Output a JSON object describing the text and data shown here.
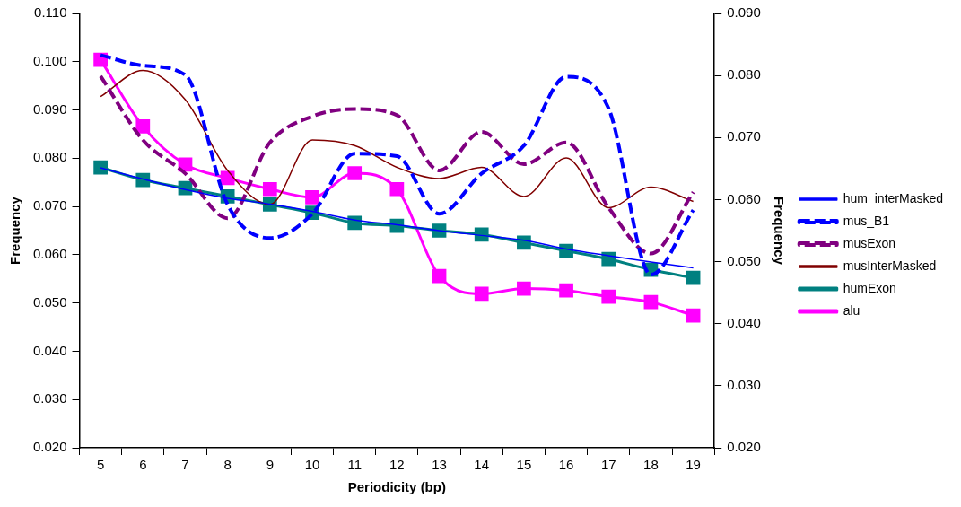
{
  "chart_data": {
    "type": "line",
    "xlabel": "Periodicity (bp)",
    "ylabel": "Frequency",
    "y2label": "Frequency",
    "categories": [
      "5",
      "6",
      "7",
      "8",
      "9",
      "10",
      "11",
      "12",
      "13",
      "14",
      "15",
      "16",
      "17",
      "18",
      "19"
    ],
    "ylim": [
      0.02,
      0.11
    ],
    "yticks": [
      {
        "value": 0.02,
        "label": "0.020"
      },
      {
        "value": 0.03,
        "label": "0.030"
      },
      {
        "value": 0.04,
        "label": "0.040"
      },
      {
        "value": 0.05,
        "label": "0.050"
      },
      {
        "value": 0.06,
        "label": "0.060"
      },
      {
        "value": 0.07,
        "label": "0.070"
      },
      {
        "value": 0.08,
        "label": "0.080"
      },
      {
        "value": 0.09,
        "label": "0.090"
      },
      {
        "value": 0.1,
        "label": "0.100"
      },
      {
        "value": 0.11,
        "label": "0.110"
      }
    ],
    "y2lim": [
      0.02,
      0.09
    ],
    "y2ticks": [
      {
        "value": 0.02,
        "label": "0.020"
      },
      {
        "value": 0.03,
        "label": "0.030"
      },
      {
        "value": 0.04,
        "label": "0.040"
      },
      {
        "value": 0.05,
        "label": "0.050"
      },
      {
        "value": 0.06,
        "label": "0.060"
      },
      {
        "value": 0.07,
        "label": "0.070"
      },
      {
        "value": 0.08,
        "label": "0.080"
      },
      {
        "value": 0.09,
        "label": "0.090"
      }
    ],
    "grid": false,
    "legend": "right",
    "series": [
      {
        "name": "humExon",
        "color": "#008080",
        "marker": "square",
        "line_style": "solid",
        "values": [
          0.0781,
          0.0755,
          0.0738,
          0.0721,
          0.0704,
          0.0687,
          0.0666,
          0.066,
          0.065,
          0.0642,
          0.0625,
          0.0608,
          0.0591,
          0.0569,
          0.0552
        ]
      },
      {
        "name": "alu",
        "color": "#ff00ff",
        "marker": "square",
        "line_style": "solid",
        "values": [
          0.1004,
          0.0866,
          0.0787,
          0.0759,
          0.0736,
          0.0719,
          0.0769,
          0.0736,
          0.0556,
          0.0519,
          0.053,
          0.0526,
          0.0513,
          0.0502,
          0.0474
        ]
      },
      {
        "name": "hum_interMasked",
        "color": "#0000ff",
        "marker": "none",
        "line_style": "solid",
        "values": [
          0.078,
          0.0757,
          0.0735,
          0.0717,
          0.0705,
          0.069,
          0.0672,
          0.0662,
          0.065,
          0.064,
          0.063,
          0.0612,
          0.0598,
          0.0585,
          0.0573
        ]
      },
      {
        "name": "mus_B1",
        "color": "#0000ff",
        "marker": "none",
        "line_style": "dashed",
        "axis": "y2",
        "values": [
          0.0833,
          0.0816,
          0.0801,
          0.0592,
          0.0538,
          0.0577,
          0.0674,
          0.067,
          0.0577,
          0.0642,
          0.0687,
          0.0798,
          0.0747,
          0.0479,
          0.0583
        ]
      },
      {
        "name": "musExon",
        "color": "#800080",
        "marker": "none",
        "line_style": "dashed",
        "axis": "y2",
        "values": [
          0.0799,
          0.0696,
          0.0642,
          0.057,
          0.0692,
          0.0734,
          0.0746,
          0.0736,
          0.0647,
          0.0709,
          0.0657,
          0.0692,
          0.0587,
          0.0513,
          0.0612
        ]
      },
      {
        "name": "musInterMasked",
        "color": "#800000",
        "marker": "none",
        "line_style": "solid",
        "axis": "y2",
        "values": [
          0.0766,
          0.0808,
          0.0761,
          0.0647,
          0.0592,
          0.0696,
          0.0687,
          0.0652,
          0.0634,
          0.0652,
          0.0605,
          0.0667,
          0.0587,
          0.062,
          0.0597
        ]
      }
    ]
  }
}
